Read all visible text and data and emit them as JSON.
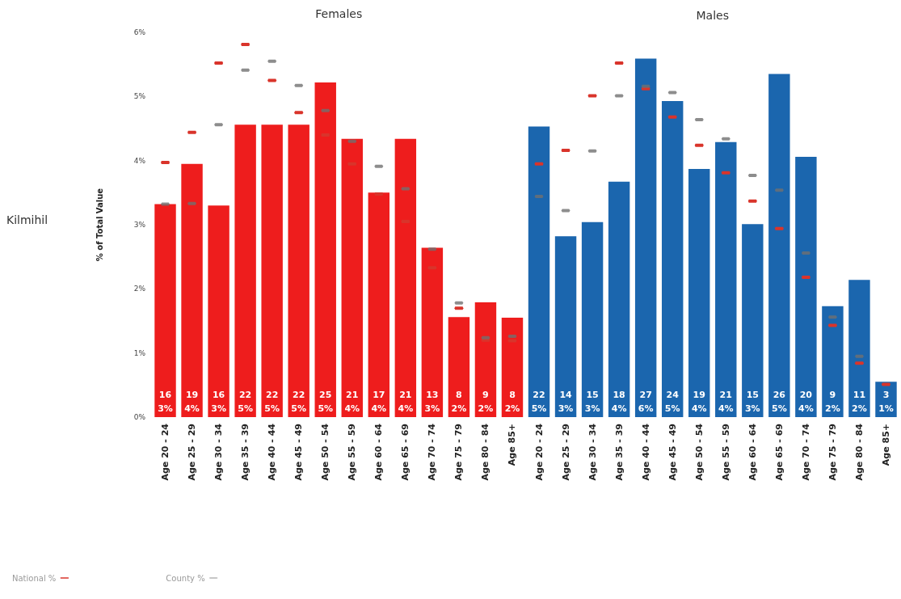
{
  "chart_data": {
    "type": "bar",
    "ylabel": "% of Total Value",
    "annotations": [
      "Females",
      "Males",
      "Kilmihil"
    ],
    "categories": [
      "Age 20 - 24",
      "Age 25 - 29",
      "Age 30 - 34",
      "Age 35 - 39",
      "Age 40 - 44",
      "Age 45 - 49",
      "Age 50 - 54",
      "Age 55 - 59",
      "Age 60 - 64",
      "Age 65 - 69",
      "Age 70 - 74",
      "Age 75 - 79",
      "Age 80 - 84",
      "Age 85+",
      "Age 20 - 24",
      "Age 25 - 29",
      "Age 30 - 34",
      "Age 35 - 39",
      "Age 40 - 44",
      "Age 45 - 49",
      "Age 50 - 54",
      "Age 55 - 59",
      "Age 60 - 64",
      "Age 65 - 69",
      "Age 70 - 74",
      "Age 75 - 79",
      "Age 80 - 84",
      "Age 85+"
    ],
    "series": [
      {
        "colors": [
          "#ee1d1d",
          "#ee1d1d",
          "#ee1d1d",
          "#ee1d1d",
          "#ee1d1d",
          "#ee1d1d",
          "#ee1d1d",
          "#ee1d1d",
          "#ee1d1d",
          "#ee1d1d",
          "#ee1d1d",
          "#ee1d1d",
          "#ee1d1d",
          "#ee1d1d",
          "#1b66ae",
          "#1b66ae",
          "#1b66ae",
          "#1b66ae",
          "#1b66ae",
          "#1b66ae",
          "#1b66ae",
          "#1b66ae",
          "#1b66ae",
          "#1b66ae",
          "#1b66ae",
          "#1b66ae",
          "#1b66ae",
          "#1b66ae"
        ],
        "values": [
          3.32,
          3.95,
          3.3,
          4.56,
          4.56,
          4.56,
          5.22,
          4.34,
          3.5,
          4.34,
          2.64,
          1.56,
          1.79,
          1.55,
          4.53,
          2.82,
          3.04,
          3.67,
          5.59,
          4.93,
          3.87,
          4.29,
          3.01,
          5.35,
          4.06,
          1.73,
          2.14,
          0.55
        ],
        "value_labels": [
          "16\n3%",
          "19\n4%",
          "16\n3%",
          "22\n5%",
          "22\n5%",
          "22\n5%",
          "25\n5%",
          "21\n4%",
          "17\n4%",
          "21\n4%",
          "13\n3%",
          "8\n2%",
          "9\n2%",
          "8\n2%",
          "22\n5%",
          "14\n3%",
          "15\n3%",
          "18\n4%",
          "27\n6%",
          "24\n5%",
          "19\n4%",
          "21\n4%",
          "15\n3%",
          "26\n5%",
          "20\n4%",
          "9\n2%",
          "11\n2%",
          "3\n1%"
        ]
      },
      {
        "type": "scatter",
        "name": "National %",
        "color": "#d9342b",
        "line_style": "dashed",
        "values": [
          3.97,
          4.44,
          5.52,
          5.81,
          5.25,
          4.75,
          4.4,
          3.95,
          3.48,
          3.05,
          2.33,
          1.7,
          1.2,
          1.19,
          3.95,
          4.16,
          5.01,
          5.52,
          5.12,
          4.68,
          4.24,
          3.81,
          3.37,
          2.94,
          2.18,
          1.43,
          0.84,
          0.51
        ]
      },
      {
        "type": "scatter",
        "name": "County %",
        "color": "#707070",
        "line_style": "dotted",
        "values": [
          3.32,
          3.33,
          4.56,
          5.41,
          5.55,
          5.17,
          4.78,
          4.3,
          3.91,
          3.56,
          2.62,
          1.78,
          1.24,
          1.26,
          3.44,
          3.22,
          4.15,
          5.01,
          5.16,
          5.06,
          4.64,
          4.34,
          3.77,
          3.54,
          2.56,
          1.56,
          0.95,
          null
        ]
      }
    ],
    "ylim": [
      0,
      6
    ],
    "yticks": [
      {
        "value": 0,
        "label": "0%"
      },
      {
        "value": 1,
        "label": "1%"
      },
      {
        "value": 2,
        "label": "2%"
      },
      {
        "value": 3,
        "label": "3%"
      },
      {
        "value": 4,
        "label": "4%"
      },
      {
        "value": 5,
        "label": "5%"
      },
      {
        "value": 6,
        "label": "6%"
      }
    ],
    "grid": false,
    "legend": "bottom left"
  }
}
